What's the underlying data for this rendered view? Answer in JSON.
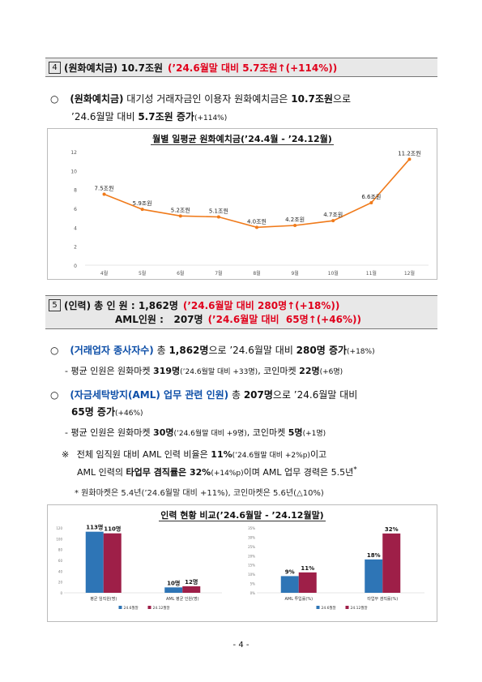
{
  "section4": {
    "num": "4",
    "title": "(원화예치금) 10.7조원",
    "change": "(’24.6월말 대비 5.7조원↑(+114%))",
    "bullet": "○",
    "body_1a": "(원화예치금)",
    "body_1b": " 대기성 거래자금인 이용자 원화예치금은 ",
    "body_1c": "10.7조원",
    "body_1d": "으로",
    "body_2a": "’24.6월말 대비 ",
    "body_2b": "5.7조원 증가",
    "body_2c": "(+114%)"
  },
  "chart1_title": "월별 일평균 원화예치금(’24.4월 - ’24.12월)",
  "chart1_data": {
    "type": "line",
    "categories": [
      "4월",
      "5월",
      "6월",
      "7월",
      "8월",
      "9월",
      "10월",
      "11월",
      "12월"
    ],
    "values": [
      7.5,
      5.9,
      5.2,
      5.1,
      4.0,
      4.2,
      4.7,
      6.6,
      11.2
    ],
    "labels": [
      "7.5조원",
      "5.9조원",
      "5.2조원",
      "5.1조원",
      "4.0조원",
      "4.2조원",
      "4.7조원",
      "6.6조원",
      "11.2조원"
    ],
    "yticks": [
      "12",
      "10",
      "8",
      "6",
      "4",
      "2",
      "0"
    ],
    "ylim": [
      0,
      12
    ],
    "color": "#f07a1a"
  },
  "section5": {
    "num": "5",
    "title_1": "(인력) 총 인 원 : 1,862명",
    "change_1": "(’24.6월말 대비 280명↑(+18%))",
    "title_2": "AML인원 :   207명",
    "change_2": "(’24.6월말 대비  65명↑(+46%))",
    "b1_bullet": "○",
    "b1_a": "(거래업자 종사자수)",
    "b1_b": " 총 ",
    "b1_c": "1,862명",
    "b1_d": "으로 ’24.6월말 대비 ",
    "b1_e": "280명 증가",
    "b1_f": "(+18%)",
    "d1_a": "- 평균 인원은 원화마켓 ",
    "d1_b": "319명",
    "d1_c": "(’24.6월말 대비 +33명)",
    "d1_d": ", 코인마켓 ",
    "d1_e": "22명",
    "d1_f": "(+6명)",
    "b2_bullet": "○",
    "b2_a": "(자금세탁방지(AML) 업무 관련 인원)",
    "b2_b": " 총 ",
    "b2_c": "207명",
    "b2_d": "으로 ’24.6월말 대비",
    "b2_e": "65명 증가",
    "b2_f": "(+46%)",
    "d2_a": "- 평균 인원은 원화마켓 ",
    "d2_b": "30명",
    "d2_c": "(’24.6월말 대비 +9명)",
    "d2_d": ", 코인마켓 ",
    "d2_e": "5명",
    "d2_f": "(+1명)",
    "n_mark": "※",
    "n1_a": "전체 임직원 대비 AML 인력 비율은 ",
    "n1_b": "11%",
    "n1_c": "(’24.6월말 대비 +2%p)",
    "n1_d": "이고",
    "n2_a": "AML 인력의 ",
    "n2_b": "타업무 겸직률은 32%",
    "n2_c": "(+14%p)",
    "n2_d": "이며 AML 업무 경력은 5.5년",
    "n2_e": "*",
    "foot": "* 원화마켓은 5.4년(’24.6월말 대비 +11%), 코인마켓은 5.6년(△10%)"
  },
  "chart2_title": "인력 현황 비교(’24.6월말 - ’24.12월말)",
  "chart2_data": [
    {
      "type": "bar",
      "categories": [
        "평균 임직원(명)",
        "AML 평균 인원(명)"
      ],
      "series": [
        {
          "name": "24.6월말",
          "values": [
            113,
            10
          ],
          "labels": [
            "113명",
            "10명"
          ],
          "color": "#2e75b6"
        },
        {
          "name": "24.12월말",
          "values": [
            110,
            12
          ],
          "labels": [
            "110명",
            "12명"
          ],
          "color": "#9e1f48"
        }
      ],
      "yticks": [
        "120",
        "100",
        "80",
        "60",
        "40",
        "20",
        "0"
      ],
      "ylim": [
        0,
        120
      ]
    },
    {
      "type": "bar",
      "categories": [
        "AML 투입률(%)",
        "타업무 겸직률(%)"
      ],
      "series": [
        {
          "name": "24.6월말",
          "values": [
            9,
            18
          ],
          "labels": [
            "9%",
            "18%"
          ],
          "color": "#2e75b6"
        },
        {
          "name": "24.12월말",
          "values": [
            11,
            32
          ],
          "labels": [
            "11%",
            "32%"
          ],
          "color": "#9e1f48"
        }
      ],
      "yticks": [
        "35%",
        "30%",
        "25%",
        "20%",
        "15%",
        "10%",
        "5%",
        "0%"
      ],
      "ylim": [
        0,
        35
      ]
    }
  ],
  "page_number": "- 4 -"
}
